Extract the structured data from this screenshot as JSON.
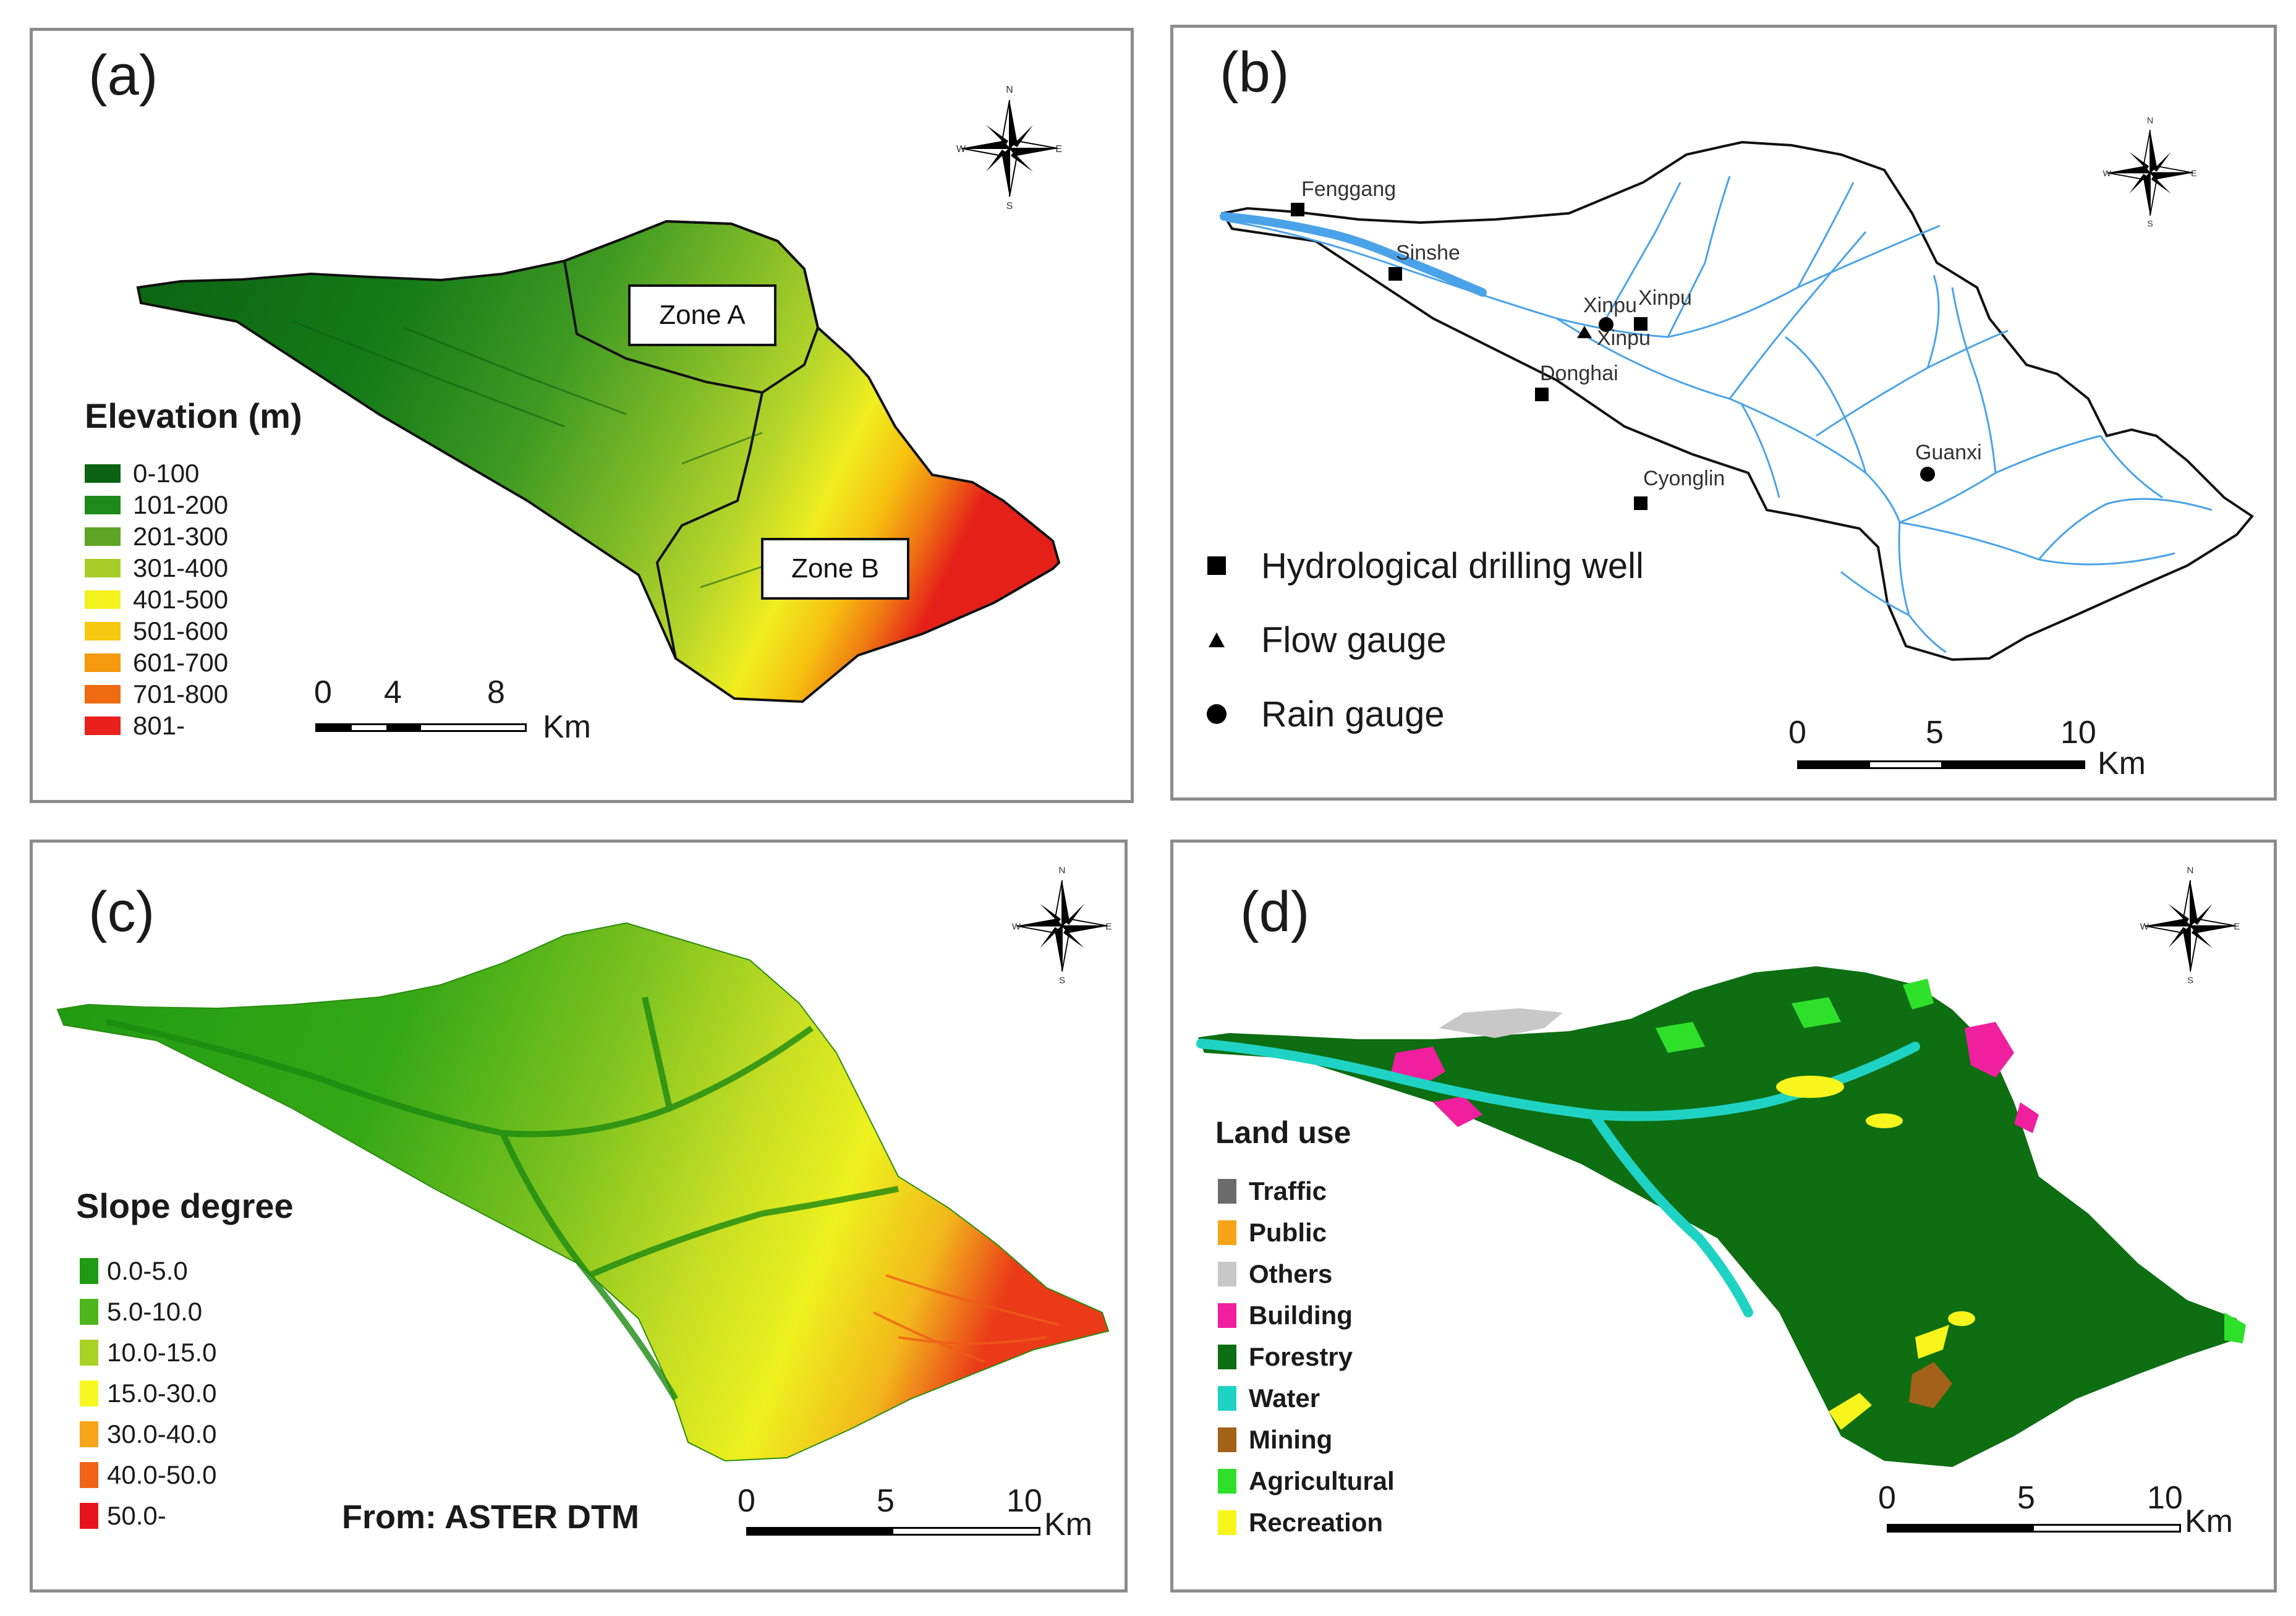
{
  "compass": {
    "n": "N",
    "s": "S",
    "e": "E",
    "w": "W"
  },
  "panel_a": {
    "label": "(a)",
    "legend_title": "Elevation (m)",
    "legend": [
      {
        "label": "0-100",
        "color": "#0b6312"
      },
      {
        "label": "101-200",
        "color": "#1f8a1c"
      },
      {
        "label": "201-300",
        "color": "#5da524"
      },
      {
        "label": "301-400",
        "color": "#a8cc26"
      },
      {
        "label": "401-500",
        "color": "#f4f21c"
      },
      {
        "label": "501-600",
        "color": "#f6c80f"
      },
      {
        "label": "601-700",
        "color": "#f59a0c"
      },
      {
        "label": "701-800",
        "color": "#ef6a10"
      },
      {
        "label": "801-",
        "color": "#e9201b"
      }
    ],
    "zones": [
      "Zone A",
      "Zone B"
    ],
    "scale": {
      "ticks": [
        "0",
        "4",
        "8"
      ],
      "unit": "Km"
    }
  },
  "panel_b": {
    "label": "(b)",
    "stations": [
      {
        "name": "Fenggang",
        "type": "well"
      },
      {
        "name": "Sinshe",
        "type": "well"
      },
      {
        "name": "Xinpu",
        "type": "rain"
      },
      {
        "name": "Xinpu",
        "type": "well"
      },
      {
        "name": "Xinpu",
        "type": "flow"
      },
      {
        "name": "Donghai",
        "type": "well"
      },
      {
        "name": "Cyonglin",
        "type": "well"
      },
      {
        "name": "Guanxi",
        "type": "rain"
      }
    ],
    "legend": [
      {
        "label": "Hydrological drilling well",
        "symbol": "square"
      },
      {
        "label": "Flow gauge",
        "symbol": "triangle"
      },
      {
        "label": "Rain gauge",
        "symbol": "circle"
      }
    ],
    "river_color": "#4aa3e8",
    "scale": {
      "ticks": [
        "0",
        "5",
        "10"
      ],
      "unit": "Km"
    }
  },
  "panel_c": {
    "label": "(c)",
    "legend_title": "Slope degree",
    "legend": [
      {
        "label": "0.0-5.0",
        "color": "#1f9a12"
      },
      {
        "label": "5.0-10.0",
        "color": "#4cb61c"
      },
      {
        "label": "10.0-15.0",
        "color": "#a9d323"
      },
      {
        "label": "15.0-30.0",
        "color": "#f6f71e"
      },
      {
        "label": "30.0-40.0",
        "color": "#f6a41a"
      },
      {
        "label": "40.0-50.0",
        "color": "#f06316"
      },
      {
        "label": "50.0-",
        "color": "#e8141b"
      }
    ],
    "source": "From: ASTER DTM",
    "scale": {
      "ticks": [
        "0",
        "5",
        "10"
      ],
      "unit": "Km"
    }
  },
  "panel_d": {
    "label": "(d)",
    "legend_title": "Land use",
    "legend": [
      {
        "label": "Traffic",
        "color": "#6b6b6b"
      },
      {
        "label": "Public",
        "color": "#f5a418"
      },
      {
        "label": "Others",
        "color": "#c8c8c8"
      },
      {
        "label": "Building",
        "color": "#f01f9e"
      },
      {
        "label": "Forestry",
        "color": "#0d6e12"
      },
      {
        "label": "Water",
        "color": "#1ed3c4"
      },
      {
        "label": "Mining",
        "color": "#a4611a"
      },
      {
        "label": "Agricultural",
        "color": "#2fe02a"
      },
      {
        "label": "Recreation",
        "color": "#f7f51b"
      }
    ],
    "scale": {
      "ticks": [
        "0",
        "5",
        "10"
      ],
      "unit": "Km"
    }
  }
}
